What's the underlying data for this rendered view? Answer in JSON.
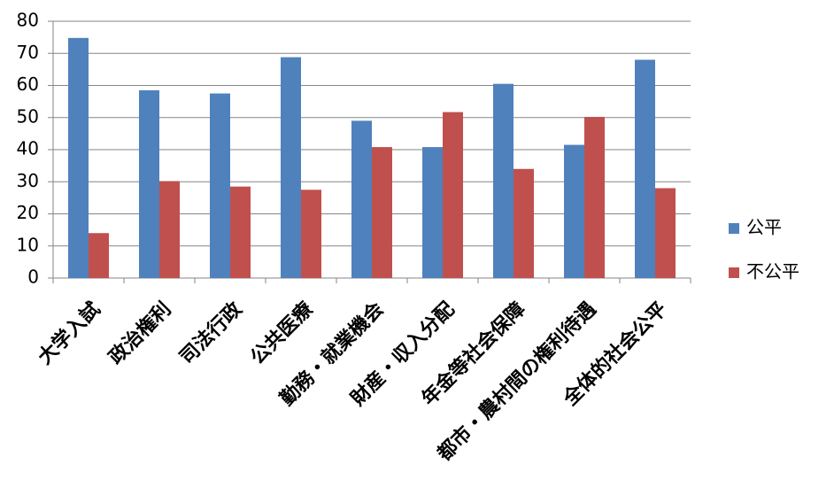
{
  "chart_data": {
    "type": "bar",
    "categories": [
      "大学入試",
      "政治権利",
      "司法行政",
      "公共医療",
      "勤務・就業機会",
      "財産・収入分配",
      "年金等社会保障",
      "都市・農村間の権利待遇",
      "全体的社会公平"
    ],
    "series": [
      {
        "name": "公平",
        "color": "#4f81bd",
        "values": [
          74.8,
          58.5,
          57.5,
          68.8,
          49,
          40.8,
          60.5,
          41.5,
          68
        ]
      },
      {
        "name": "不公平",
        "color": "#c0504d",
        "values": [
          14,
          30.2,
          28.5,
          27.5,
          40.8,
          51.7,
          34,
          50.2,
          28
        ]
      }
    ],
    "ylim": [
      0,
      80
    ],
    "yticks": [
      0,
      10,
      20,
      30,
      40,
      50,
      60,
      70,
      80
    ],
    "grid": true,
    "legend": "right"
  }
}
